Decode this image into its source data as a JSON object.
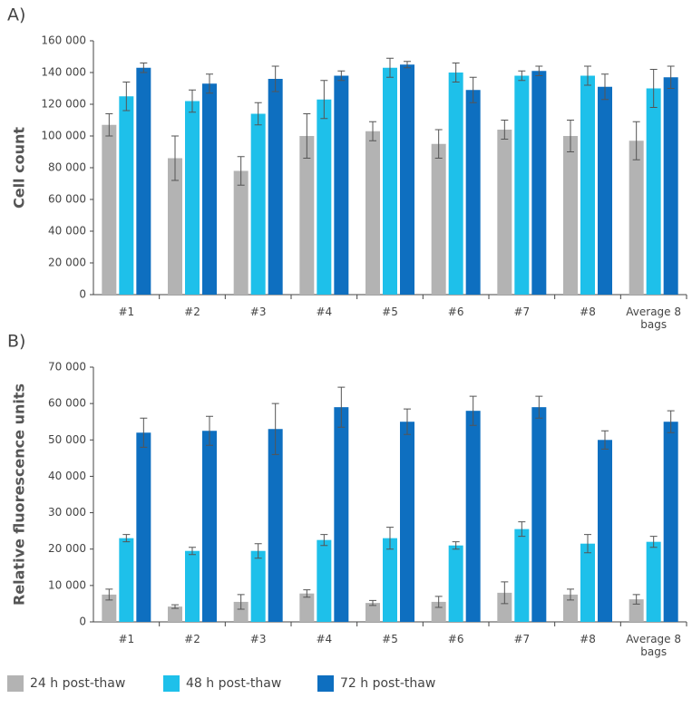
{
  "chart_data": [
    {
      "type": "bar",
      "panel_label": "A)",
      "y_label": "Cell count",
      "categories": [
        "#1",
        "#2",
        "#3",
        "#4",
        "#5",
        "#6",
        "#7",
        "#8",
        "Average 8 bags"
      ],
      "ylim": [
        0,
        160000
      ],
      "yticks": [
        0,
        {
          "value": 20000,
          "label": "20 000"
        },
        {
          "value": 40000,
          "label": "40 000"
        },
        {
          "value": 60000,
          "label": "60 000"
        },
        {
          "value": 80000,
          "label": "80 000"
        },
        {
          "value": 100000,
          "label": "100 000"
        },
        {
          "value": 120000,
          "label": "120 000"
        },
        {
          "value": 140000,
          "label": "140 000"
        },
        {
          "value": 160000,
          "label": "160 000"
        }
      ],
      "series": [
        {
          "name": "24 h post-thaw",
          "color": "#b3b3b3",
          "values": [
            107000,
            86000,
            78000,
            100000,
            103000,
            95000,
            104000,
            100000,
            97000
          ],
          "errors": [
            7000,
            14000,
            9000,
            14000,
            6000,
            9000,
            6000,
            10000,
            12000
          ]
        },
        {
          "name": "48 h post-thaw",
          "color": "#1ec0ea",
          "values": [
            125000,
            122000,
            114000,
            123000,
            143000,
            140000,
            138000,
            138000,
            130000
          ],
          "errors": [
            9000,
            7000,
            7000,
            12000,
            6000,
            6000,
            3000,
            6000,
            12000
          ]
        },
        {
          "name": "72 h post-thaw",
          "color": "#0e6fc0",
          "values": [
            143000,
            133000,
            136000,
            138000,
            145000,
            129000,
            141000,
            131000,
            137000
          ],
          "errors": [
            3000,
            6000,
            8000,
            3000,
            2000,
            8000,
            3000,
            8000,
            7000
          ]
        }
      ]
    },
    {
      "type": "bar",
      "panel_label": "B)",
      "y_label": "Relative fluorescence units",
      "categories": [
        "#1",
        "#2",
        "#3",
        "#4",
        "#5",
        "#6",
        "#7",
        "#8",
        "Average 8 bags"
      ],
      "ylim": [
        0,
        70000
      ],
      "yticks": [
        0,
        {
          "value": 10000,
          "label": "10 000"
        },
        {
          "value": 20000,
          "label": "20 000"
        },
        {
          "value": 30000,
          "label": "30 000"
        },
        {
          "value": 40000,
          "label": "40 000"
        },
        {
          "value": 50000,
          "label": "50 000"
        },
        {
          "value": 60000,
          "label": "60 000"
        },
        {
          "value": 70000,
          "label": "70 000"
        }
      ],
      "series": [
        {
          "color": "#b3b3b3",
          "values": [
            7500,
            4200,
            5500,
            7800,
            5200,
            5500,
            8000,
            7500,
            6200
          ],
          "errors": [
            1500,
            500,
            2000,
            1000,
            700,
            1500,
            3000,
            1500,
            1300
          ]
        },
        {
          "color": "#1ec0ea",
          "values": [
            23000,
            19500,
            19500,
            22500,
            23000,
            21000,
            25500,
            21500,
            22000
          ],
          "errors": [
            1000,
            1000,
            2000,
            1500,
            3000,
            1000,
            2000,
            2500,
            1500
          ]
        },
        {
          "color": "#0e6fc0",
          "values": [
            52000,
            52500,
            53000,
            59000,
            55000,
            58000,
            59000,
            50000,
            55000
          ],
          "errors": [
            4000,
            4000,
            7000,
            5500,
            3500,
            4000,
            3000,
            2500,
            3000
          ]
        }
      ]
    }
  ]
}
